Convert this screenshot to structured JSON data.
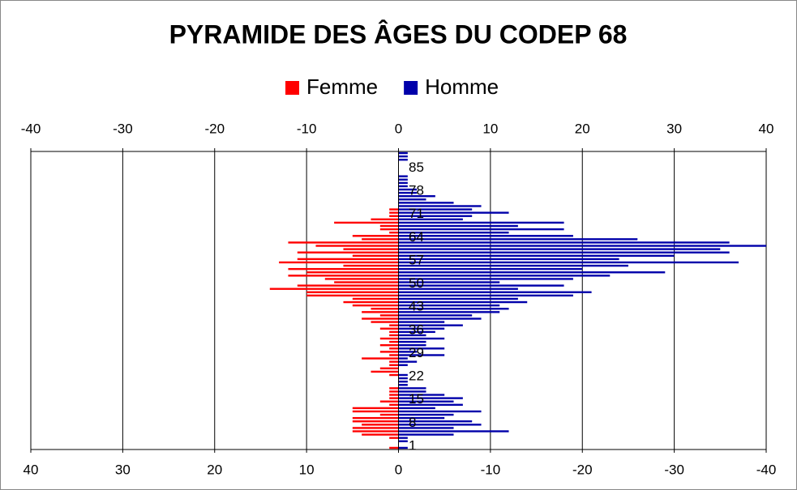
{
  "chart_data": {
    "type": "pyramid",
    "title": "PYRAMIDE DES ÂGES DU CODEP 68",
    "categories": [
      "1",
      null,
      null,
      null,
      null,
      null,
      null,
      "8",
      null,
      null,
      null,
      null,
      null,
      null,
      "15",
      null,
      null,
      null,
      null,
      null,
      null,
      "22",
      null,
      null,
      null,
      null,
      null,
      null,
      "29",
      null,
      null,
      null,
      null,
      null,
      null,
      "36",
      null,
      null,
      null,
      null,
      null,
      null,
      "43",
      null,
      null,
      null,
      null,
      null,
      null,
      "50",
      null,
      null,
      null,
      null,
      null,
      null,
      "57",
      null,
      null,
      null,
      null,
      null,
      null,
      "64",
      null,
      null,
      null,
      null,
      null,
      null,
      "71",
      null,
      null,
      null,
      null,
      null,
      null,
      "78",
      null,
      null,
      null,
      null,
      null,
      null,
      "85",
      null,
      null,
      null,
      null,
      null
    ],
    "series": [
      {
        "name": "Femme",
        "color": "#ff0000",
        "values": [
          -1,
          0,
          0,
          -1,
          -4,
          -5,
          -5,
          -4,
          -5,
          -5,
          -2,
          -5,
          -5,
          -1,
          -2,
          -1,
          -1,
          -1,
          -1,
          0,
          0,
          0,
          -1,
          -3,
          -2,
          -1,
          -1,
          -4,
          -1,
          -2,
          -1,
          -2,
          -1,
          -2,
          -1,
          -1,
          -2,
          -1,
          -3,
          -4,
          -2,
          -4,
          -3,
          -5,
          -6,
          -5,
          -10,
          -10,
          -14,
          -11,
          -7,
          -8,
          -12,
          -10,
          -12,
          -6,
          -13,
          -11,
          -5,
          -11,
          -6,
          -9,
          -12,
          -4,
          -5,
          -1,
          -2,
          -2,
          -7,
          -3,
          -1,
          -1,
          -1,
          0,
          0,
          0,
          0,
          0,
          0,
          0,
          0,
          0,
          0,
          0,
          0,
          0,
          0,
          0,
          0,
          0
        ]
      },
      {
        "name": "Homme",
        "color": "#0000aa",
        "values": [
          1,
          0,
          1,
          1,
          6,
          12,
          6,
          9,
          8,
          5,
          6,
          9,
          4,
          7,
          6,
          7,
          5,
          3,
          3,
          1,
          1,
          1,
          1,
          0,
          0,
          1,
          2,
          1,
          5,
          2,
          5,
          3,
          3,
          5,
          3,
          4,
          5,
          7,
          5,
          9,
          8,
          11,
          12,
          11,
          14,
          13,
          19,
          21,
          13,
          18,
          11,
          19,
          23,
          29,
          20,
          25,
          37,
          24,
          30,
          36,
          35,
          40,
          36,
          26,
          19,
          12,
          18,
          13,
          18,
          7,
          8,
          12,
          8,
          9,
          6,
          3,
          4,
          2,
          2,
          1,
          1,
          1,
          1,
          0,
          0,
          0,
          0,
          1,
          1,
          1
        ]
      }
    ],
    "xlim": [
      -40,
      40
    ],
    "xticks": [
      -40,
      -30,
      -20,
      -10,
      0,
      10,
      20,
      30,
      40
    ],
    "x2lim": [
      40,
      -40
    ],
    "x2ticks": [
      40,
      30,
      20,
      10,
      0,
      -10,
      -20,
      -30,
      -40
    ],
    "grid": true
  }
}
